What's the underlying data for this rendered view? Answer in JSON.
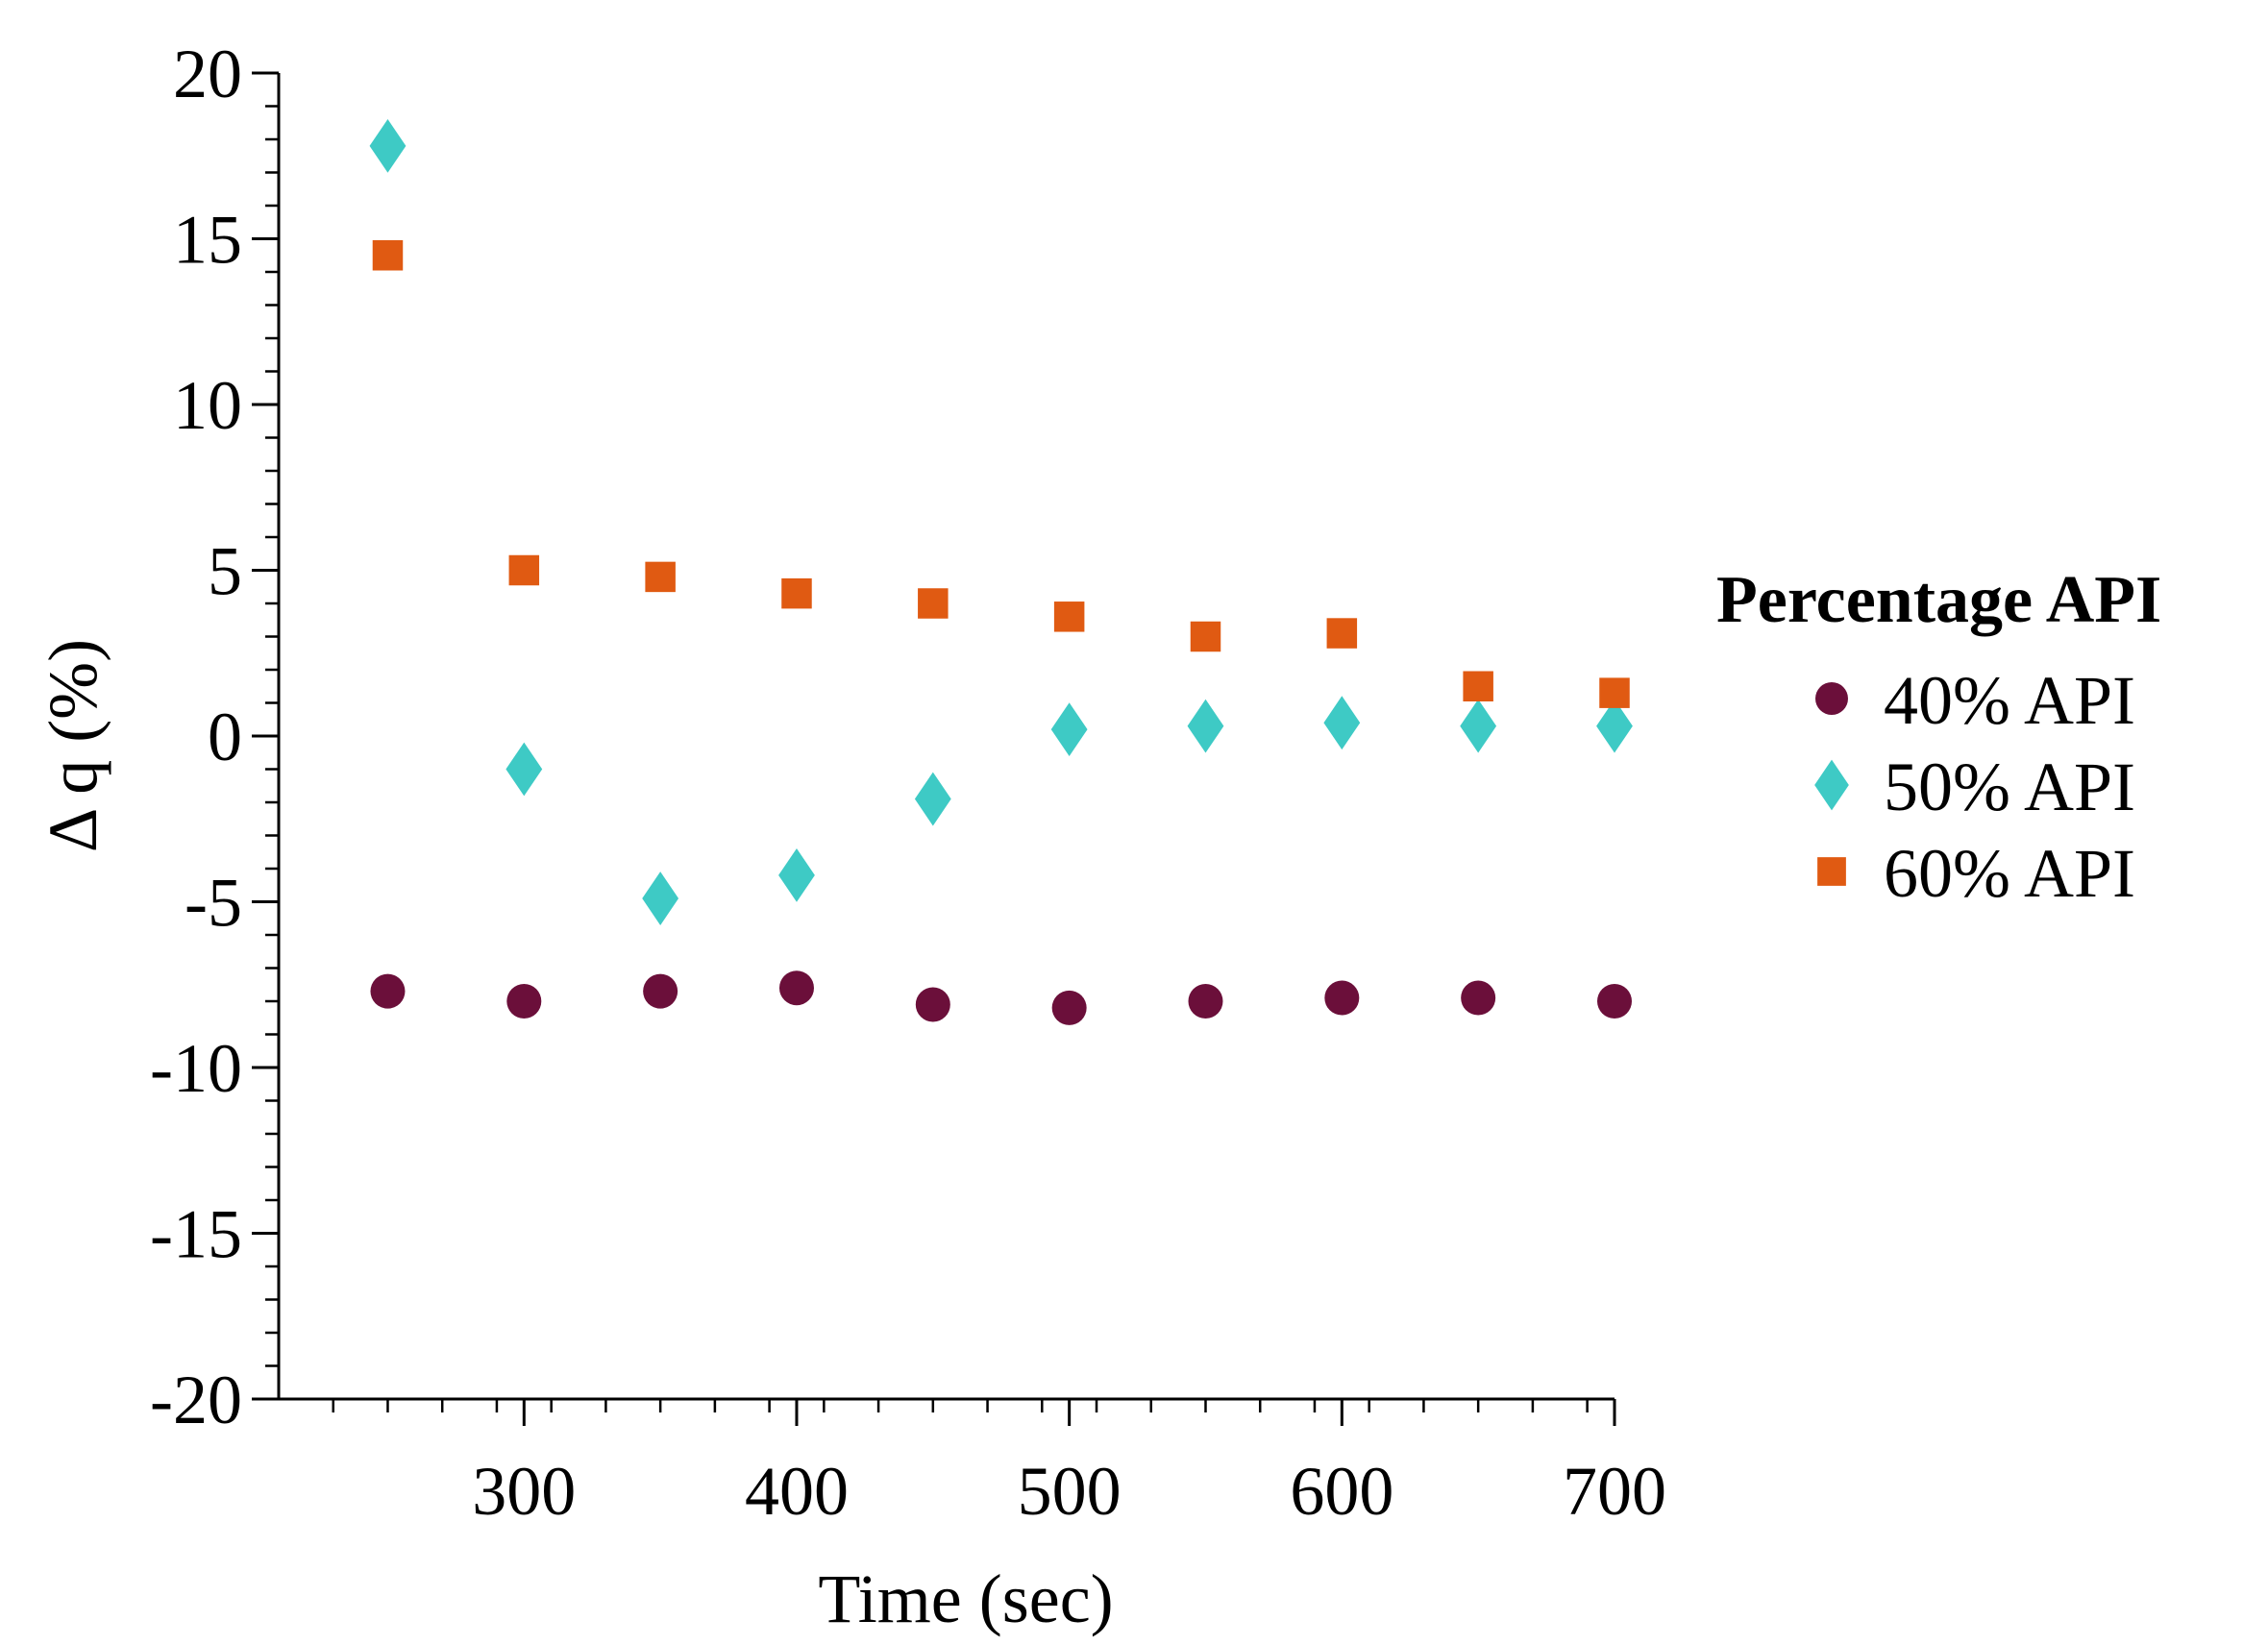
{
  "chart_data": {
    "type": "scatter",
    "title": "",
    "xlabel": "Time (sec)",
    "ylabel": "Δ q (%)",
    "xlim": [
      210,
      700
    ],
    "ylim": [
      -20,
      20
    ],
    "x_ticks": [
      300,
      400,
      500,
      600,
      700
    ],
    "y_ticks": [
      -20,
      -15,
      -10,
      -5,
      0,
      5,
      10,
      15,
      20
    ],
    "x_minor_step": 20,
    "y_minor_step": 1,
    "x": [
      250,
      300,
      350,
      400,
      450,
      500,
      550,
      600,
      650,
      700
    ],
    "legend_title": "Percentage API",
    "legend_position": "right",
    "series": [
      {
        "name": "40% API",
        "marker": "circle",
        "color": "#6B0F3A",
        "values": [
          -7.7,
          -8.0,
          -7.7,
          -7.6,
          -8.1,
          -8.2,
          -8.0,
          -7.9,
          -7.9,
          -8.0
        ]
      },
      {
        "name": "50% API",
        "marker": "diamond",
        "color": "#3ECAC5",
        "values": [
          17.8,
          -1.0,
          -4.9,
          -4.2,
          -1.9,
          0.2,
          0.3,
          0.4,
          0.3,
          0.3
        ]
      },
      {
        "name": "60% API",
        "marker": "square",
        "color": "#E05A12",
        "values": [
          14.5,
          5.0,
          4.8,
          4.3,
          4.0,
          3.6,
          3.0,
          3.1,
          1.5,
          1.3
        ]
      }
    ]
  }
}
